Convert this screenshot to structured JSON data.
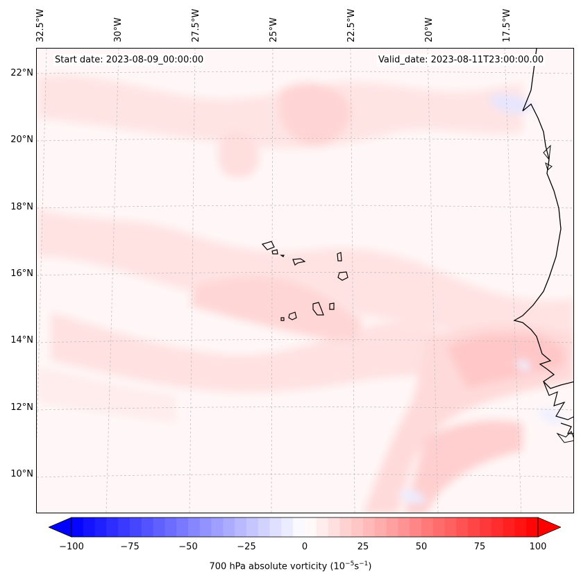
{
  "header": {
    "start_date": "Start date: 2023-08-09_00:00:00",
    "valid_date": "Valid_date: 2023-08-11T23:00:00.00"
  },
  "map": {
    "longitude_labels": [
      "32.5°W",
      "30°W",
      "27.5°W",
      "25°W",
      "22.5°W",
      "20°W",
      "17.5°W"
    ],
    "latitude_labels": [
      "22°N",
      "20°N",
      "18°N",
      "16°N",
      "14°N",
      "12°N",
      "10°N"
    ],
    "field": "700 hPa absolute vorticity",
    "colors": {
      "positive": "#ff0000",
      "negative": "#0000ff",
      "zero": "#ffffff",
      "coast": "#000000"
    }
  },
  "colorbar": {
    "min": -100,
    "max": 100,
    "ticks": [
      "−100",
      "−75",
      "−50",
      "−25",
      "0",
      "25",
      "50",
      "75",
      "100"
    ],
    "title_main": "700 hPa absolute vorticity (10",
    "title_exp1": "−5",
    "title_mid": "s",
    "title_exp2": "−1",
    "title_end": ")"
  }
}
